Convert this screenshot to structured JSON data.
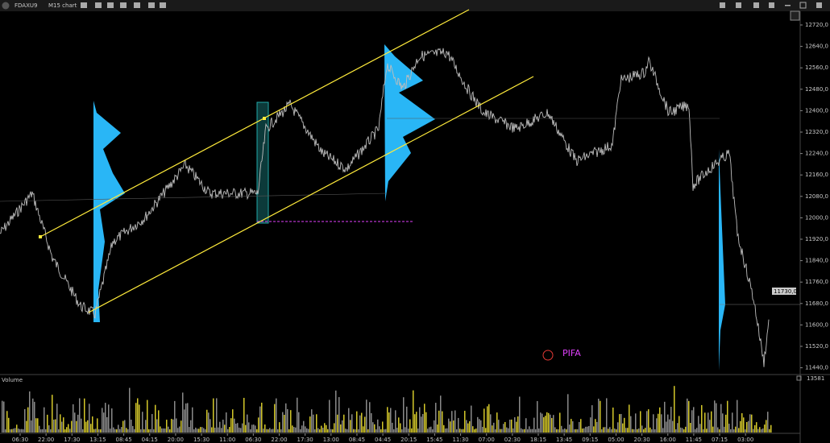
{
  "toolbar": {
    "symbol": "FDAXU9",
    "chart": "M15 chart"
  },
  "price_axis": {
    "ticks": [
      "12720,0",
      "12640,0",
      "12560,0",
      "12480,0",
      "12400,0",
      "12320,0",
      "12240,0",
      "12160,0",
      "12080,0",
      "12000,0",
      "11920,0",
      "11840,0",
      "11760,0",
      "11680,0",
      "11600,0",
      "11520,0",
      "11440,0"
    ],
    "current": "11730,0"
  },
  "annotation": "PIFA",
  "volume": {
    "label": "Volume",
    "max": "13581"
  },
  "time_axis": [
    "06:30",
    "22:00",
    "17:30",
    "13:15",
    "08:45",
    "04:15",
    "20:00",
    "15:30",
    "11:00",
    "06:30",
    "22:00",
    "17:30",
    "13:00",
    "08:45",
    "04:45",
    "20:15",
    "15:45",
    "11:30",
    "07:00",
    "02:30",
    "18:15",
    "13:45",
    "09:15",
    "05:00",
    "20:30",
    "16:00",
    "11:45",
    "07:15",
    "03:00"
  ]
}
